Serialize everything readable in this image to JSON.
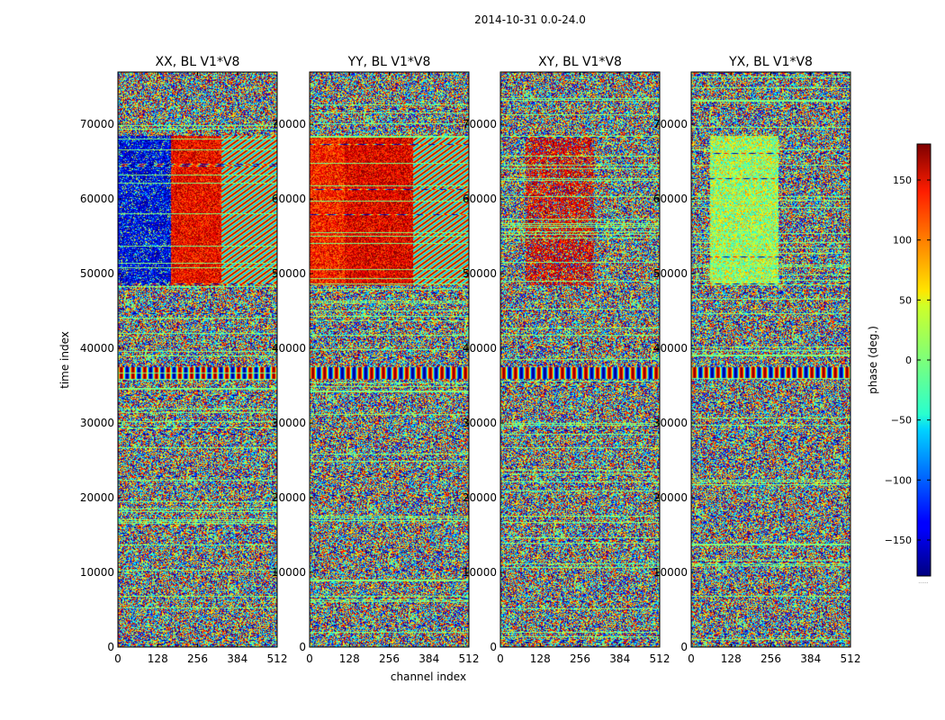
{
  "figure": {
    "suptitle": "2014-10-31 0.0-24.0",
    "xlabel": "channel index",
    "ylabel": "time index"
  },
  "chart_data": {
    "type": "heatmap",
    "panels": [
      {
        "title": "XX, BL V1*V8",
        "pol": "XX"
      },
      {
        "title": "YY, BL V1*V8",
        "pol": "YY"
      },
      {
        "title": "XY, BL V1*V8",
        "pol": "XY"
      },
      {
        "title": "YX, BL V1*V8",
        "pol": "YX"
      }
    ],
    "xlim": [
      0,
      512
    ],
    "ylim": [
      0,
      77000
    ],
    "xticks": [
      0,
      128,
      256,
      384,
      512
    ],
    "yticks": [
      0,
      10000,
      20000,
      30000,
      40000,
      50000,
      60000,
      70000
    ],
    "colorbar": {
      "label": "phase (deg.)",
      "range": [
        -180,
        180
      ],
      "ticks": [
        -150,
        -100,
        -50,
        0,
        50,
        100,
        150
      ],
      "colormap": "jet",
      "extra_label": "......"
    }
  }
}
